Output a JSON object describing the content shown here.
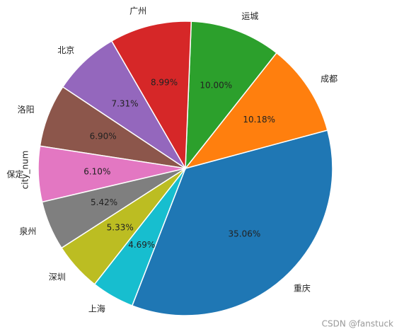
{
  "chart_data": {
    "type": "pie",
    "ylabel": "city_num",
    "categories": [
      "重庆",
      "成都",
      "运城",
      "广州",
      "北京",
      "洛阳",
      "保定",
      "泉州",
      "深圳",
      "上海"
    ],
    "values": [
      35.06,
      10.18,
      10.0,
      8.99,
      7.31,
      6.9,
      6.1,
      5.42,
      5.33,
      4.69
    ],
    "value_labels": [
      "35.06%",
      "10.18%",
      "10.00%",
      "8.99%",
      "7.31%",
      "6.90%",
      "6.10%",
      "5.42%",
      "5.33%",
      "4.69%"
    ],
    "colors": [
      "#1f77b4",
      "#ff7f0e",
      "#2ca02c",
      "#d62728",
      "#9467bd",
      "#8c564b",
      "#e377c2",
      "#7f7f7f",
      "#bcbd22",
      "#17becf"
    ]
  },
  "watermark": "CSDN @fanstuck"
}
